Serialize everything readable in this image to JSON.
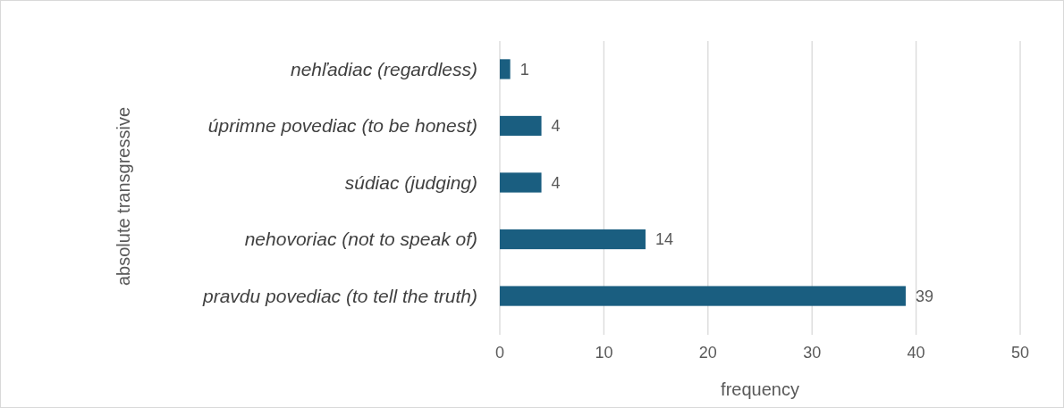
{
  "chart_data": {
    "type": "bar",
    "orientation": "horizontal",
    "ylabel": "absolute transgressive",
    "xlabel": "frequency",
    "categories": [
      "nehľadiac (regardless)",
      "úprimne povediac (to be honest)",
      "súdiac (judging)",
      "nehovoriac (not to speak of)",
      "pravdu povediac (to tell the truth)"
    ],
    "values": [
      1,
      4,
      4,
      14,
      39
    ],
    "color": "#1a5e80",
    "xlim": [
      0,
      50
    ],
    "xticks": [
      0,
      10,
      20,
      30,
      40,
      50
    ],
    "grid": "x",
    "data_labels": true
  }
}
